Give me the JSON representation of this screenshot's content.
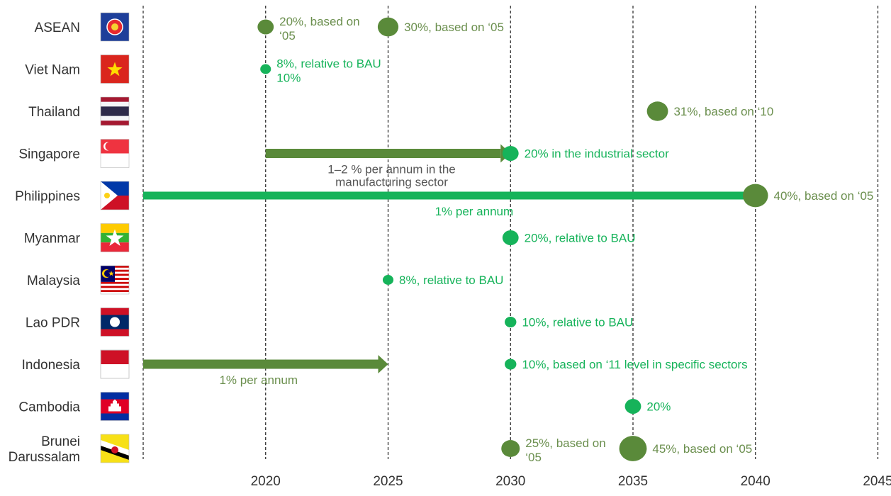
{
  "chart_data": {
    "type": "scatter",
    "title": "",
    "xlabel": "",
    "ylabel": "",
    "xlim": [
      2015,
      2045
    ],
    "x_ticks": [
      "2020",
      "2025",
      "2030",
      "2035",
      "2040",
      "2045"
    ],
    "grid": "vertical dashed lines at ticks",
    "colors": {
      "dark_green": "#5a8a3a",
      "light_green": "#16b35a",
      "text_dark": "#6b8f4e",
      "text_light": "#16b35a"
    },
    "rows": [
      {
        "label": "ASEAN",
        "flag": "asean-flag"
      },
      {
        "label": "Viet Nam",
        "flag": "vietnam-flag"
      },
      {
        "label": "Thailand",
        "flag": "thailand-flag"
      },
      {
        "label": "Singapore",
        "flag": "singapore-flag"
      },
      {
        "label": "Philippines",
        "flag": "philippines-flag"
      },
      {
        "label": "Myanmar",
        "flag": "myanmar-flag"
      },
      {
        "label": "Malaysia",
        "flag": "malaysia-flag"
      },
      {
        "label": "Lao PDR",
        "flag": "laos-flag"
      },
      {
        "label": "Indonesia",
        "flag": "indonesia-flag"
      },
      {
        "label": "Cambodia",
        "flag": "cambodia-flag"
      },
      {
        "label": [
          "Brunei",
          "Darussalam"
        ],
        "flag": "brunei-flag"
      }
    ],
    "targets": [
      {
        "row": 0,
        "year": 2020,
        "pct": 20,
        "color": "dark",
        "label": [
          "20%, based on",
          "‘05"
        ]
      },
      {
        "row": 0,
        "year": 2025,
        "pct": 30,
        "color": "dark",
        "label": [
          "30%, based on ‘05"
        ]
      },
      {
        "row": 1,
        "year": 2020,
        "pct": 8,
        "color": "light",
        "label": [
          "8%, relative to BAU",
          "10%"
        ]
      },
      {
        "row": 2,
        "year": 2036,
        "pct": 31,
        "color": "dark",
        "label": [
          "31%, based on ‘10"
        ]
      },
      {
        "row": 3,
        "year": 2030,
        "pct": 20,
        "color": "light",
        "label": [
          "20% in the industrial sector"
        ]
      },
      {
        "row": 4,
        "year": 2040,
        "pct": 40,
        "color": "dark",
        "label": [
          "40%, based on ‘05"
        ]
      },
      {
        "row": 5,
        "year": 2030,
        "pct": 20,
        "color": "light",
        "label": [
          "20%, relative to BAU"
        ]
      },
      {
        "row": 6,
        "year": 2025,
        "pct": 8,
        "color": "light",
        "label": [
          "8%, relative to BAU"
        ]
      },
      {
        "row": 7,
        "year": 2030,
        "pct": 10,
        "color": "light",
        "label": [
          "10%, relative to BAU"
        ]
      },
      {
        "row": 8,
        "year": 2030,
        "pct": 10,
        "color": "light",
        "label": [
          "10%, based on ‘11 level in specific sectors"
        ]
      },
      {
        "row": 9,
        "year": 2035,
        "pct": 20,
        "color": "light",
        "label": [
          "20%"
        ]
      },
      {
        "row": 10,
        "year": 2030,
        "pct": 25,
        "color": "dark",
        "label": [
          "25%, based on",
          "‘05"
        ]
      },
      {
        "row": 10,
        "year": 2035,
        "pct": 45,
        "color": "dark",
        "label": [
          "45%, based on ‘05"
        ]
      }
    ],
    "arrows": [
      {
        "row": 3,
        "from": 2020,
        "to": 2030,
        "color": "dark",
        "label": [
          "1–2 % per annum in  the",
          "manufacturing sector"
        ],
        "label_color": "grey"
      },
      {
        "row": 4,
        "from": 2015,
        "to": 2040,
        "color": "light",
        "label": [
          "1% per annum"
        ],
        "label_color": "light"
      },
      {
        "row": 8,
        "from": 2015,
        "to": 2025,
        "color": "dark",
        "label": [
          "1% per annum"
        ],
        "label_color": "dark"
      }
    ]
  }
}
